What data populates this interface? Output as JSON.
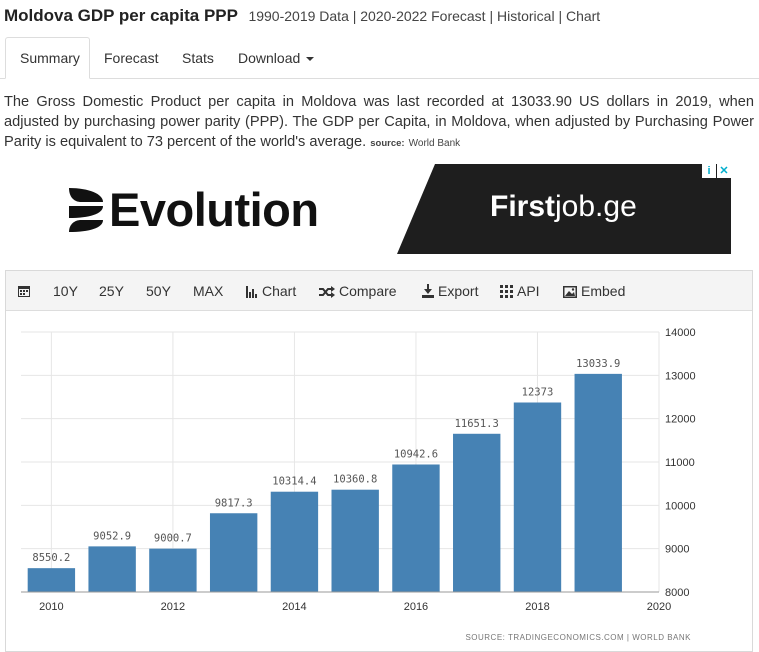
{
  "header": {
    "title": "Moldova GDP per capita PPP",
    "subtitle": "1990-2019 Data | 2020-2022 Forecast | Historical | Chart"
  },
  "tabs": [
    {
      "label": "Summary",
      "active": true
    },
    {
      "label": "Forecast"
    },
    {
      "label": "Stats"
    },
    {
      "label": "Download"
    }
  ],
  "description": {
    "text": "The Gross Domestic Product per capita in Moldova was last recorded at 13033.90 US dollars in 2019, when adjusted by purchasing power parity (PPP). The GDP per Capita, in Moldova, when adjusted by Purchasing Power Parity is equivalent to 73 percent of the world's average.",
    "source_label": "source:",
    "source_name": "World Bank"
  },
  "ad": {
    "left_brand": "Evolution",
    "right_brand_bold": "First",
    "right_brand_rest": "job.ge",
    "badges": [
      "i",
      "✕"
    ],
    "accent": "#00aecd"
  },
  "toolbar": {
    "calendar_icon": "calendar-icon",
    "items": [
      "10Y",
      "25Y",
      "50Y",
      "MAX"
    ],
    "chart_label": "Chart",
    "compare_label": "Compare",
    "export_label": "Export",
    "api_label": "API",
    "embed_label": "Embed"
  },
  "chart_data": {
    "type": "bar",
    "x": [
      2010,
      2011,
      2012,
      2013,
      2014,
      2015,
      2016,
      2017,
      2018,
      2019
    ],
    "values": [
      8550.2,
      9052.9,
      9000.7,
      9817.3,
      10314.4,
      10360.8,
      10942.6,
      11651.3,
      12373,
      13033.9
    ],
    "value_labels": [
      "8550.2",
      "9052.9",
      "9000.7",
      "9817.3",
      "10314.4",
      "10360.8",
      "10942.6",
      "11651.3",
      "12373",
      "13033.9"
    ],
    "x_ticks": [
      "2010",
      "2012",
      "2014",
      "2016",
      "2018",
      "2020"
    ],
    "y_ticks": [
      "8000",
      "9000",
      "10000",
      "11000",
      "12000",
      "13000",
      "14000"
    ],
    "ylim": [
      8000,
      14000
    ],
    "xlim": [
      2009.5,
      2020
    ],
    "y_axis_side": "right",
    "grid": true,
    "bar_color": "#4682b4",
    "source": "SOURCE: TRADINGECONOMICS.COM  |  WORLD BANK"
  }
}
